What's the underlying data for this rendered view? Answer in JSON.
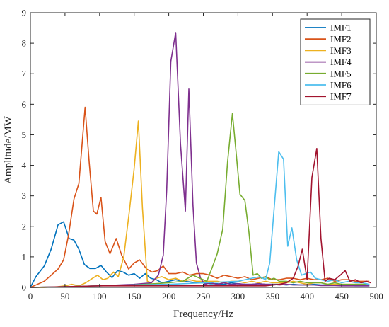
{
  "chart_data": {
    "type": "line",
    "xlabel": "Frequency/Hz",
    "ylabel": "Amplitude/MW",
    "xlim": [
      0,
      500
    ],
    "ylim": [
      0,
      9
    ],
    "xticks": [
      "0",
      "50",
      "100",
      "150",
      "200",
      "250",
      "300",
      "350",
      "400",
      "450",
      "500"
    ],
    "yticks": [
      "0",
      "1",
      "2",
      "3",
      "4",
      "5",
      "6",
      "7",
      "8",
      "9"
    ],
    "grid": false,
    "legend_position": "top-right",
    "series": [
      {
        "name": "IMF1",
        "color": "#0072BD",
        "x": [
          0,
          8,
          20,
          30,
          40,
          48,
          56,
          63,
          70,
          78,
          86,
          94,
          102,
          110,
          118,
          126,
          134,
          142,
          150,
          158,
          166,
          174,
          182,
          190,
          200,
          210,
          220,
          230,
          240,
          250,
          260,
          270,
          280,
          290,
          300,
          310,
          320,
          330,
          340,
          350,
          360,
          370,
          380,
          390,
          400,
          410,
          420,
          430,
          440,
          450,
          460,
          470,
          480,
          490
        ],
        "y": [
          0,
          0.35,
          0.7,
          1.25,
          2.05,
          2.15,
          1.6,
          1.55,
          1.25,
          0.75,
          0.62,
          0.62,
          0.72,
          0.5,
          0.32,
          0.55,
          0.5,
          0.4,
          0.45,
          0.3,
          0.45,
          0.3,
          0.25,
          0.15,
          0.2,
          0.25,
          0.2,
          0.18,
          0.15,
          0.15,
          0.12,
          0.12,
          0.1,
          0.15,
          0.12,
          0.1,
          0.1,
          0.12,
          0.1,
          0.1,
          0.1,
          0.08,
          0.1,
          0.08,
          0.08,
          0.1,
          0.08,
          0.08,
          0.08,
          0.06,
          0.06,
          0.05,
          0.05,
          0.05
        ]
      },
      {
        "name": "IMF2",
        "color": "#D95319",
        "x": [
          0,
          10,
          20,
          30,
          40,
          48,
          55,
          63,
          70,
          79,
          85,
          91,
          96,
          102,
          108,
          115,
          124,
          132,
          142,
          150,
          158,
          168,
          176,
          184,
          192,
          200,
          210,
          220,
          230,
          240,
          250,
          260,
          270,
          280,
          290,
          300,
          310,
          320,
          330,
          340,
          350,
          360,
          370,
          380,
          390,
          400,
          410,
          420,
          430,
          440,
          450,
          460,
          470,
          480,
          490
        ],
        "y": [
          0,
          0.1,
          0.2,
          0.4,
          0.6,
          0.9,
          1.7,
          2.9,
          3.4,
          5.9,
          4.1,
          2.5,
          2.4,
          2.95,
          1.5,
          1.1,
          1.6,
          1.05,
          0.6,
          0.8,
          0.9,
          0.6,
          0.5,
          0.55,
          0.7,
          0.45,
          0.45,
          0.5,
          0.4,
          0.45,
          0.45,
          0.4,
          0.3,
          0.4,
          0.35,
          0.3,
          0.35,
          0.25,
          0.3,
          0.35,
          0.25,
          0.25,
          0.3,
          0.3,
          0.25,
          0.3,
          0.25,
          0.25,
          0.3,
          0.2,
          0.25,
          0.25,
          0.2,
          0.2,
          0.2
        ]
      },
      {
        "name": "IMF3",
        "color": "#EDB120",
        "x": [
          0,
          20,
          40,
          50,
          60,
          70,
          80,
          90,
          97,
          105,
          112,
          120,
          127,
          135,
          143,
          150,
          156,
          162,
          169,
          175,
          182,
          190,
          200,
          210,
          220,
          230,
          240,
          250,
          260,
          270,
          280,
          290,
          300,
          310,
          320,
          330,
          340,
          350,
          360,
          370,
          380,
          390,
          400,
          410,
          420,
          430,
          440,
          450,
          460,
          470,
          480,
          490
        ],
        "y": [
          0,
          0,
          0.02,
          0.05,
          0.1,
          0.05,
          0.15,
          0.3,
          0.4,
          0.25,
          0.3,
          0.5,
          0.35,
          1.0,
          2.5,
          3.9,
          5.45,
          2.6,
          0.2,
          0.15,
          0.3,
          0.35,
          0.25,
          0.3,
          0.2,
          0.25,
          0.2,
          0.2,
          0.2,
          0.2,
          0.15,
          0.2,
          0.2,
          0.15,
          0.2,
          0.15,
          0.2,
          0.15,
          0.15,
          0.15,
          0.2,
          0.15,
          0.1,
          0.15,
          0.15,
          0.1,
          0.1,
          0.1,
          0.1,
          0.1,
          0.1,
          0.1
        ]
      },
      {
        "name": "IMF4",
        "color": "#7E2F8E",
        "x": [
          0,
          50,
          100,
          150,
          175,
          185,
          192,
          197,
          203,
          210,
          217,
          224,
          229,
          235,
          240,
          246,
          252,
          260,
          270,
          280,
          290,
          300,
          310,
          320,
          330,
          340,
          350,
          360,
          370,
          380,
          390,
          400,
          410,
          420,
          430,
          440,
          450,
          460,
          470,
          480,
          490
        ],
        "y": [
          0,
          0.02,
          0.05,
          0.1,
          0.15,
          0.4,
          1.05,
          3.2,
          7.4,
          8.35,
          4.7,
          2.5,
          6.5,
          2.7,
          0.8,
          0.3,
          0.1,
          0.15,
          0.1,
          0.15,
          0.1,
          0.12,
          0.1,
          0.1,
          0.12,
          0.1,
          0.1,
          0.08,
          0.1,
          0.08,
          0.08,
          0.08,
          0.08,
          0.06,
          0.06,
          0.06,
          0.05,
          0.05,
          0.05,
          0.05,
          0.05
        ]
      },
      {
        "name": "IMF5",
        "color": "#77AC30",
        "x": [
          0,
          50,
          100,
          150,
          200,
          220,
          235,
          245,
          255,
          262,
          270,
          278,
          285,
          292,
          297,
          303,
          310,
          316,
          322,
          328,
          334,
          340,
          346,
          352,
          360,
          370,
          380,
          390,
          400,
          410,
          420,
          430,
          440,
          450,
          460,
          470,
          480,
          490
        ],
        "y": [
          0,
          0.02,
          0.05,
          0.08,
          0.15,
          0.2,
          0.4,
          0.3,
          0.2,
          0.6,
          1.1,
          1.9,
          4.1,
          5.7,
          4.5,
          3.05,
          2.85,
          1.8,
          0.4,
          0.45,
          0.3,
          0.35,
          0.25,
          0.3,
          0.2,
          0.2,
          0.15,
          0.2,
          0.15,
          0.15,
          0.15,
          0.1,
          0.15,
          0.1,
          0.1,
          0.1,
          0.1,
          0.1
        ]
      },
      {
        "name": "IMF6",
        "color": "#4DBEEE",
        "x": [
          0,
          50,
          100,
          150,
          200,
          250,
          300,
          320,
          332,
          340,
          346,
          352,
          359,
          366,
          372,
          378,
          385,
          392,
          398,
          405,
          412,
          420,
          430,
          440,
          450,
          460,
          470,
          480,
          490
        ],
        "y": [
          0,
          0.02,
          0.05,
          0.08,
          0.1,
          0.15,
          0.2,
          0.3,
          0.35,
          0.25,
          0.8,
          2.5,
          4.45,
          4.2,
          1.35,
          1.95,
          0.9,
          0.4,
          0.45,
          0.5,
          0.3,
          0.25,
          0.2,
          0.25,
          0.15,
          0.2,
          0.15,
          0.15,
          0.1
        ]
      },
      {
        "name": "IMF7",
        "color": "#A2142F",
        "x": [
          0,
          50,
          100,
          150,
          200,
          250,
          300,
          340,
          360,
          370,
          380,
          387,
          393,
          400,
          407,
          414,
          420,
          426,
          432,
          440,
          448,
          455,
          462,
          470,
          478,
          486,
          492
        ],
        "y": [
          0,
          0.02,
          0.05,
          0.05,
          0.05,
          0.05,
          0.05,
          0.05,
          0.1,
          0.15,
          0.3,
          0.7,
          1.25,
          0.25,
          3.6,
          4.55,
          1.6,
          0.2,
          0.3,
          0.25,
          0.4,
          0.55,
          0.2,
          0.25,
          0.15,
          0.2,
          0.15
        ]
      }
    ]
  }
}
